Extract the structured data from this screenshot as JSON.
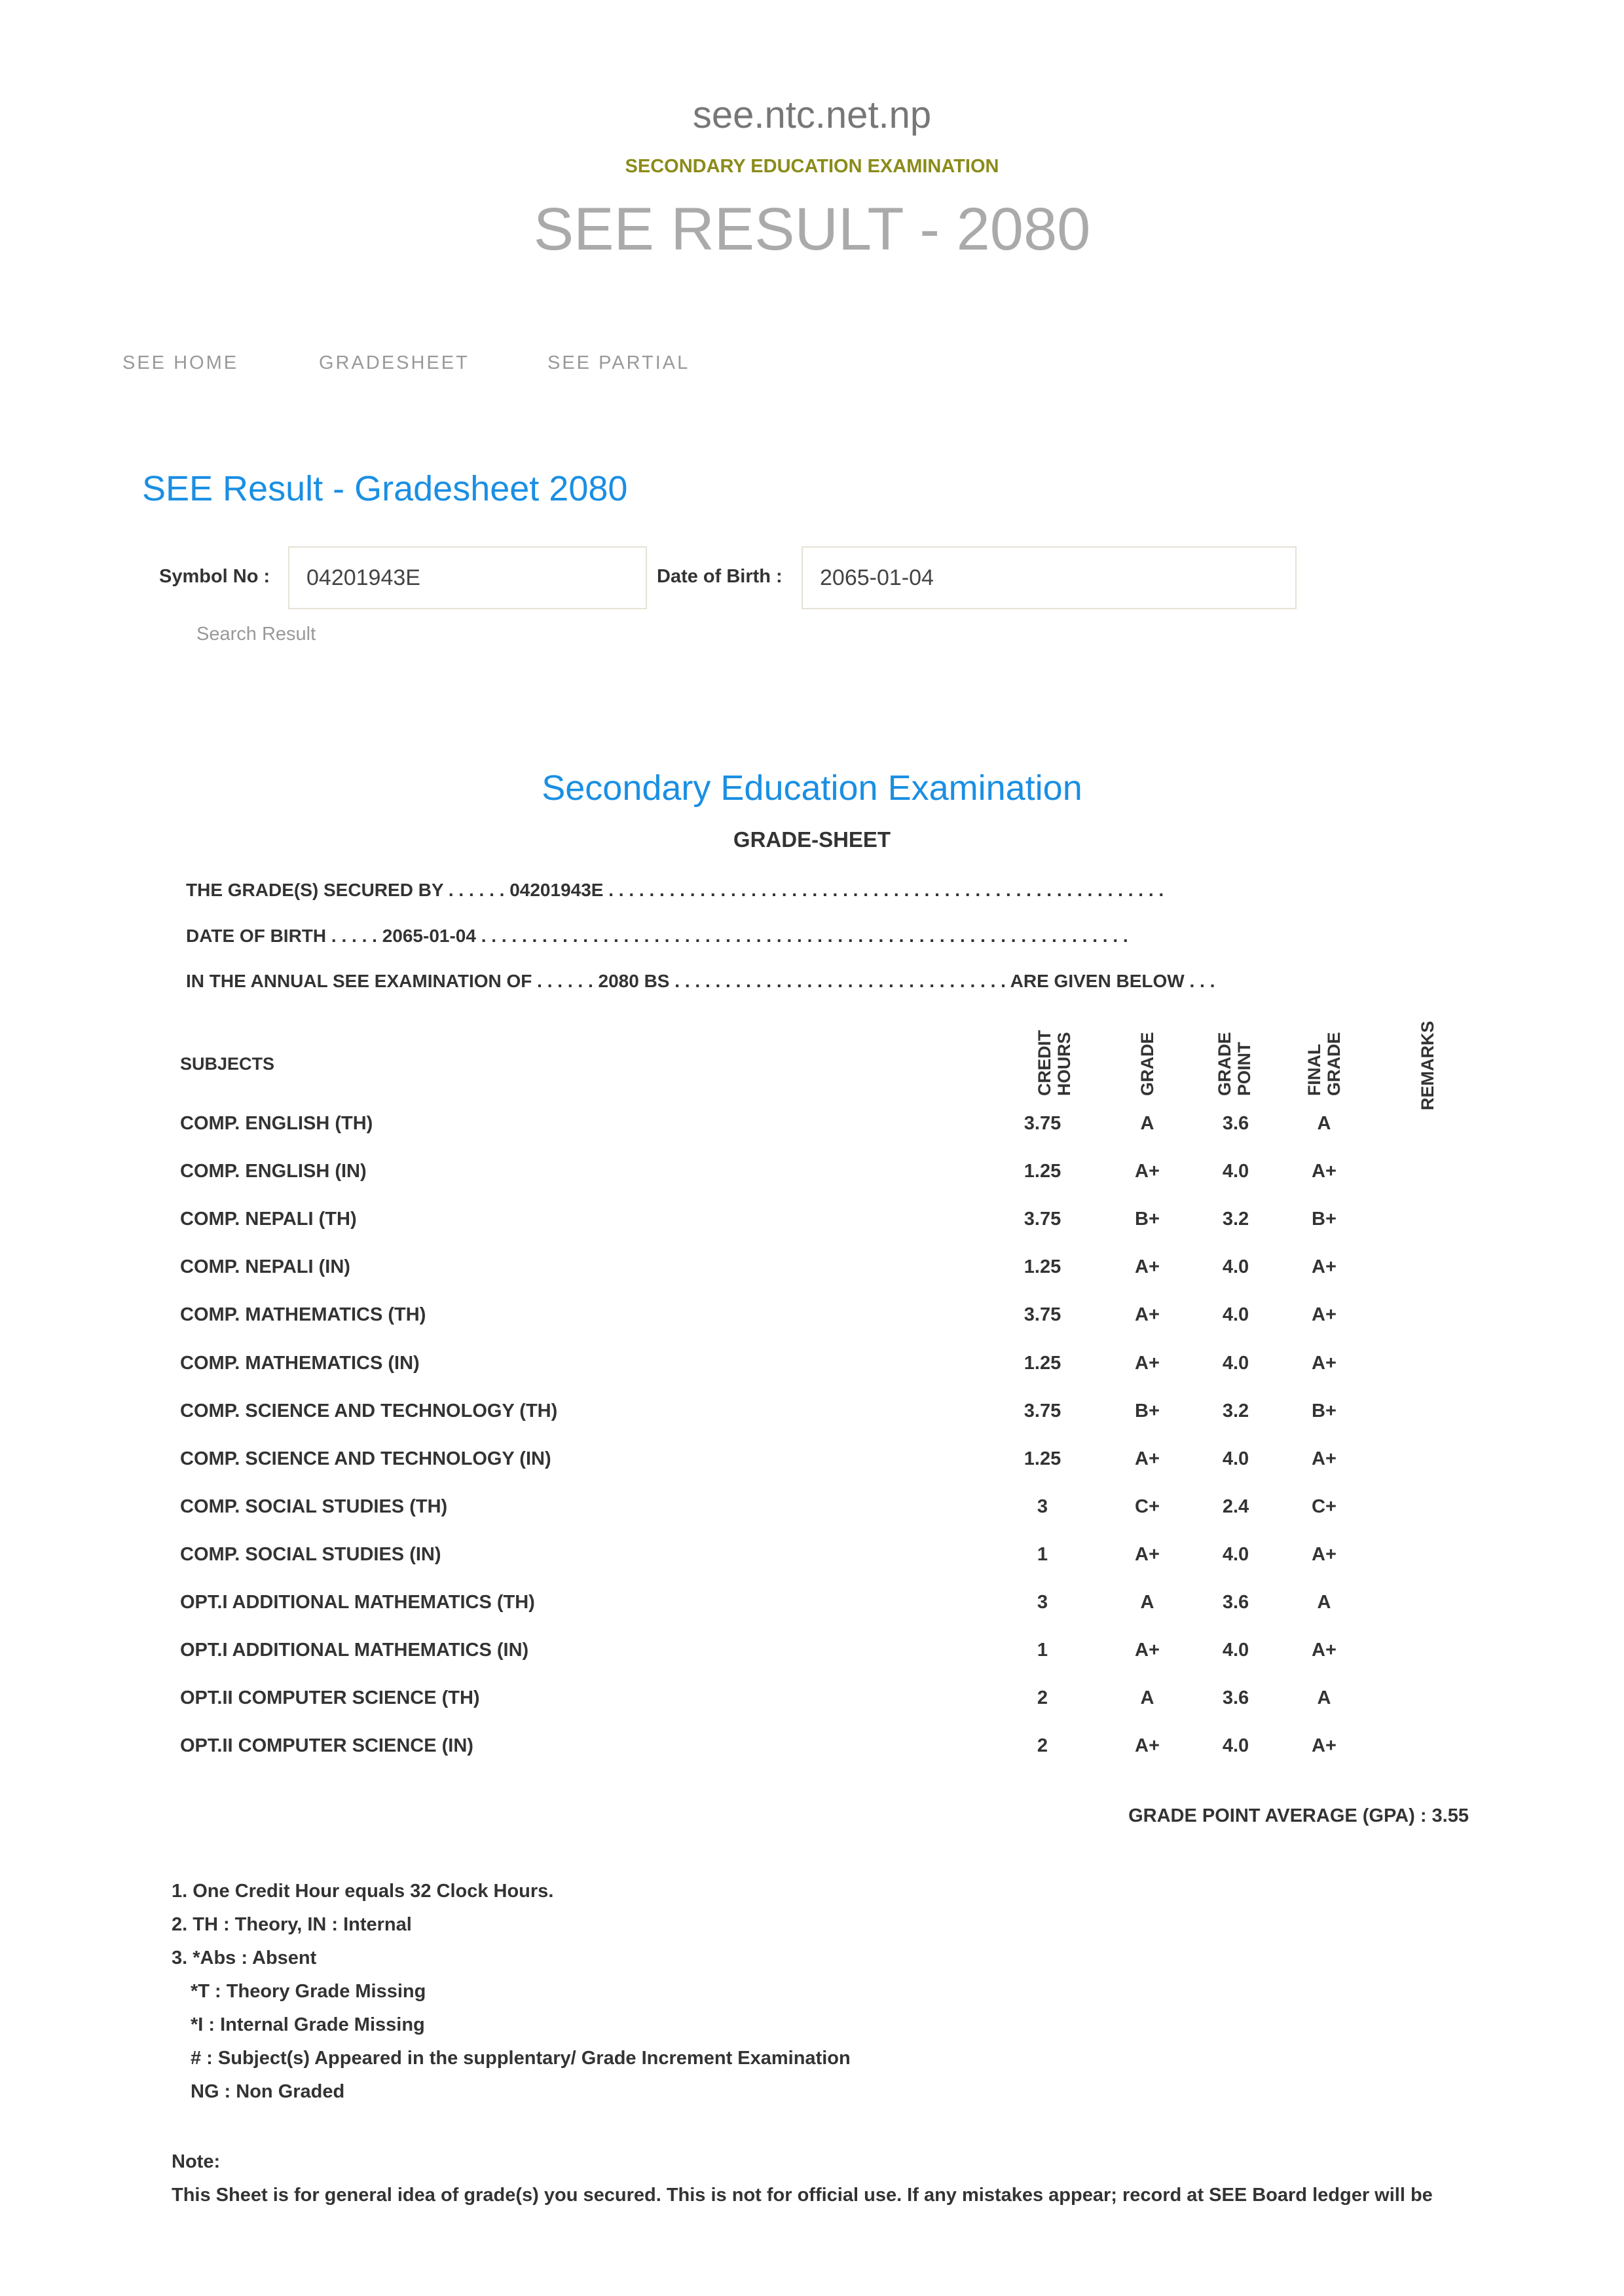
{
  "header": {
    "site": "see.ntc.net.np",
    "subtitle": "SECONDARY EDUCATION EXAMINATION",
    "title": "SEE RESULT - 2080"
  },
  "nav": [
    "SEE HOME",
    "GRADESHEET",
    "SEE PARTIAL"
  ],
  "form": {
    "heading": "SEE Result - Gradesheet 2080",
    "symbol_label": "Symbol No :",
    "symbol_value": "04201943E",
    "dob_label": "Date of Birth :",
    "dob_value": "2065-01-04",
    "search_label": "Search Result"
  },
  "sheet": {
    "title": "Secondary Education Examination",
    "subtitle": "GRADE-SHEET",
    "lines": [
      "THE GRADE(S) SECURED BY . . . . . . 04201943E . . . . . . . . . . . . . . . . . . . . . . . . . . . . . . . . . . . . . . . . . . . . . . . . . . . . . . .",
      "DATE OF BIRTH . . . . . 2065-01-04 . . . . . . . . . . . . . . . . . . . . . . . . . . . . . . . . . . . . . . . . . . . . . . . . . . . . . . . . . . . . . . . .",
      "IN THE ANNUAL SEE EXAMINATION OF . . . . . . 2080 BS . . . . . . . . . . . . . . . . . . . . . . . . . . . . . . . . . ARE GIVEN BELOW . . ."
    ],
    "columns": {
      "subjects": "SUBJECTS",
      "credit_1": "CREDIT",
      "credit_2": "HOURS",
      "grade": "GRADE",
      "gp_1": "GRADE",
      "gp_2": "POINT",
      "final_1": "FINAL",
      "final_2": "GRADE",
      "remarks": "REMARKS"
    },
    "rows": [
      {
        "subject": "COMP. ENGLISH (TH)",
        "credit": "3.75",
        "grade": "A",
        "gp": "3.6",
        "final": "A"
      },
      {
        "subject": "COMP. ENGLISH (IN)",
        "credit": "1.25",
        "grade": "A+",
        "gp": "4.0",
        "final": "A+"
      },
      {
        "subject": "COMP. NEPALI (TH)",
        "credit": "3.75",
        "grade": "B+",
        "gp": "3.2",
        "final": "B+"
      },
      {
        "subject": "COMP. NEPALI (IN)",
        "credit": "1.25",
        "grade": "A+",
        "gp": "4.0",
        "final": "A+"
      },
      {
        "subject": "COMP. MATHEMATICS (TH)",
        "credit": "3.75",
        "grade": "A+",
        "gp": "4.0",
        "final": "A+"
      },
      {
        "subject": "COMP. MATHEMATICS (IN)",
        "credit": "1.25",
        "grade": "A+",
        "gp": "4.0",
        "final": "A+"
      },
      {
        "subject": "COMP. SCIENCE AND TECHNOLOGY (TH)",
        "credit": "3.75",
        "grade": "B+",
        "gp": "3.2",
        "final": "B+"
      },
      {
        "subject": "COMP. SCIENCE AND TECHNOLOGY (IN)",
        "credit": "1.25",
        "grade": "A+",
        "gp": "4.0",
        "final": "A+"
      },
      {
        "subject": "COMP. SOCIAL STUDIES (TH)",
        "credit": "3",
        "grade": "C+",
        "gp": "2.4",
        "final": "C+"
      },
      {
        "subject": "COMP. SOCIAL STUDIES (IN)",
        "credit": "1",
        "grade": "A+",
        "gp": "4.0",
        "final": "A+"
      },
      {
        "subject": "OPT.I ADDITIONAL MATHEMATICS (TH)",
        "credit": "3",
        "grade": "A",
        "gp": "3.6",
        "final": "A"
      },
      {
        "subject": "OPT.I ADDITIONAL MATHEMATICS (IN)",
        "credit": "1",
        "grade": "A+",
        "gp": "4.0",
        "final": "A+"
      },
      {
        "subject": "OPT.II COMPUTER SCIENCE (TH)",
        "credit": "2",
        "grade": "A",
        "gp": "3.6",
        "final": "A"
      },
      {
        "subject": "OPT.II COMPUTER SCIENCE (IN)",
        "credit": "2",
        "grade": "A+",
        "gp": "4.0",
        "final": "A+"
      }
    ],
    "gpa": "GRADE POINT AVERAGE (GPA) : 3.55",
    "footnotes": [
      "1. One Credit Hour equals 32 Clock Hours.",
      "2. TH : Theory, IN : Internal",
      "3. *Abs : Absent",
      "*T : Theory Grade Missing",
      "*I : Internal Grade Missing",
      "# : Subject(s) Appeared in the supplentary/ Grade Increment Examination",
      "NG : Non Graded"
    ],
    "note_label": "Note:",
    "note_text": "This Sheet is for general idea of grade(s) you secured. This is not for official use. If any mistakes appear; record at SEE Board ledger will be"
  },
  "colors": {
    "accent": "#1a8fe3",
    "olive": "#8b8b1a",
    "title_gray": "#aaaaaa"
  }
}
